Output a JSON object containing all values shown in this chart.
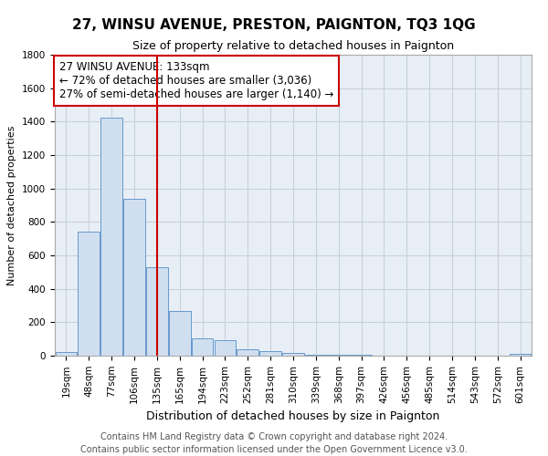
{
  "title": "27, WINSU AVENUE, PRESTON, PAIGNTON, TQ3 1QG",
  "subtitle": "Size of property relative to detached houses in Paignton",
  "xlabel": "Distribution of detached houses by size in Paignton",
  "ylabel": "Number of detached properties",
  "footer1": "Contains HM Land Registry data © Crown copyright and database right 2024.",
  "footer2": "Contains public sector information licensed under the Open Government Licence v3.0.",
  "annotation_line1": "27 WINSU AVENUE: 133sqm",
  "annotation_line2": "← 72% of detached houses are smaller (3,036)",
  "annotation_line3": "27% of semi-detached houses are larger (1,140) →",
  "bar_color": "#d0dff0",
  "bar_edge_color": "#6699cc",
  "vline_color": "#cc0000",
  "vline_x_index": 4,
  "grid_color": "#c8d0dc",
  "plot_bg_color": "#e8eef6",
  "background_color": "#ffffff",
  "bin_labels": [
    "19sqm",
    "48sqm",
    "77sqm",
    "106sqm",
    "135sqm",
    "165sqm",
    "194sqm",
    "223sqm",
    "252sqm",
    "281sqm",
    "310sqm",
    "339sqm",
    "368sqm",
    "397sqm",
    "426sqm",
    "456sqm",
    "485sqm",
    "514sqm",
    "543sqm",
    "572sqm",
    "601sqm"
  ],
  "bar_values": [
    22,
    740,
    1425,
    940,
    530,
    265,
    105,
    92,
    38,
    28,
    15,
    5,
    5,
    3,
    2,
    2,
    0,
    0,
    0,
    0,
    13
  ],
  "ylim": [
    0,
    1800
  ],
  "yticks": [
    0,
    200,
    400,
    600,
    800,
    1000,
    1200,
    1400,
    1600,
    1800
  ],
  "title_fontsize": 11,
  "subtitle_fontsize": 9,
  "ylabel_fontsize": 8,
  "xlabel_fontsize": 9,
  "tick_fontsize": 7.5,
  "annotation_fontsize": 8.5,
  "footer_fontsize": 7
}
